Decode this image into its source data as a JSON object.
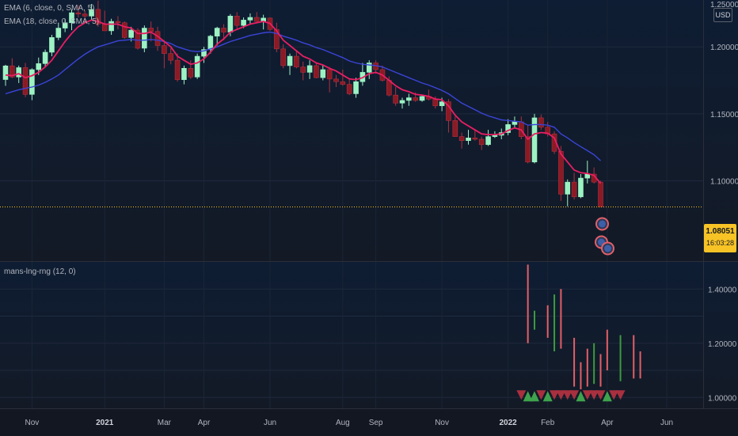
{
  "legend": {
    "ema_fast": "EMA (6, close, 0, SMA, 5)",
    "ema_slow": "EMA (18, close, 0, SMA, 5)",
    "indicator": "mans-lng-rng (12, 0)"
  },
  "axis": {
    "currency": "USD",
    "top_clipped_label": "1.25000",
    "current_price": "1.08051",
    "countdown": "16:03:28"
  },
  "colors": {
    "bull": "#9cf2c3",
    "bear": "#8b1a24",
    "ema_fast": "#e91e63",
    "ema_slow": "#3b44d8",
    "ind_bull": "#3d9a3d",
    "ind_bear": "#e35f68",
    "price_line": "#f7c325"
  },
  "chart_data": [
    {
      "type": "candlestick",
      "name": "main",
      "y_ticks": [
        "1.25000",
        "1.20000",
        "1.15000",
        "1.10000"
      ],
      "y_tick_values": [
        1.25,
        1.2,
        1.15,
        1.1
      ],
      "ylim": [
        1.04,
        1.235
      ],
      "x_ticks": [
        {
          "label": "Nov",
          "bold": false
        },
        {
          "label": "2021",
          "bold": true
        },
        {
          "label": "Mar",
          "bold": false
        },
        {
          "label": "Apr",
          "bold": false
        },
        {
          "label": "Jun",
          "bold": false
        },
        {
          "label": "Aug",
          "bold": false
        },
        {
          "label": "Sep",
          "bold": false
        },
        {
          "label": "Nov",
          "bold": false
        },
        {
          "label": "2022",
          "bold": true
        },
        {
          "label": "Feb",
          "bold": false
        },
        {
          "label": "Apr",
          "bold": false
        },
        {
          "label": "Jun",
          "bold": false
        }
      ],
      "x_tick_index": [
        4,
        15,
        24,
        30,
        40,
        51,
        56,
        66,
        76,
        82,
        91,
        100
      ],
      "candles": [
        [
          1.1756,
          1.1866,
          1.1709,
          1.1858
        ],
        [
          1.1858,
          1.1915,
          1.1766,
          1.1775
        ],
        [
          1.1775,
          1.186,
          1.173,
          1.1845
        ],
        [
          1.1845,
          1.188,
          1.1625,
          1.1645
        ],
        [
          1.1645,
          1.184,
          1.1602,
          1.183
        ],
        [
          1.183,
          1.192,
          1.179,
          1.1875
        ],
        [
          1.1875,
          1.198,
          1.185,
          1.196
        ],
        [
          1.196,
          1.209,
          1.193,
          1.207
        ],
        [
          1.207,
          1.218,
          1.205,
          1.214
        ],
        [
          1.214,
          1.221,
          1.211,
          1.218
        ],
        [
          1.218,
          1.228,
          1.2125,
          1.2255
        ],
        [
          1.2255,
          1.231,
          1.222,
          1.2245
        ],
        [
          1.2245,
          1.227,
          1.218,
          1.223
        ],
        [
          1.223,
          1.232,
          1.22,
          1.228
        ],
        [
          1.228,
          1.2345,
          1.215,
          1.217
        ],
        [
          1.217,
          1.227,
          1.212,
          1.212
        ],
        [
          1.212,
          1.221,
          1.209,
          1.219
        ],
        [
          1.219,
          1.223,
          1.213,
          1.218
        ],
        [
          1.218,
          1.219,
          1.206,
          1.207
        ],
        [
          1.207,
          1.215,
          1.204,
          1.2125
        ],
        [
          1.2125,
          1.214,
          1.198,
          1.199
        ],
        [
          1.199,
          1.216,
          1.196,
          1.214
        ],
        [
          1.214,
          1.219,
          1.204,
          1.2115
        ],
        [
          1.2115,
          1.215,
          1.197,
          1.201
        ],
        [
          1.201,
          1.205,
          1.184,
          1.195
        ],
        [
          1.195,
          1.199,
          1.187,
          1.19
        ],
        [
          1.19,
          1.195,
          1.174,
          1.1755
        ],
        [
          1.1755,
          1.186,
          1.172,
          1.184
        ],
        [
          1.184,
          1.19,
          1.176,
          1.1775
        ],
        [
          1.1775,
          1.195,
          1.176,
          1.193
        ],
        [
          1.193,
          1.2,
          1.188,
          1.198
        ],
        [
          1.198,
          1.209,
          1.195,
          1.208
        ],
        [
          1.208,
          1.215,
          1.201,
          1.214
        ],
        [
          1.214,
          1.217,
          1.205,
          1.211
        ],
        [
          1.211,
          1.2245,
          1.208,
          1.223
        ],
        [
          1.223,
          1.226,
          1.213,
          1.216
        ],
        [
          1.216,
          1.222,
          1.214,
          1.22
        ],
        [
          1.22,
          1.225,
          1.217,
          1.222
        ],
        [
          1.222,
          1.226,
          1.218,
          1.219
        ],
        [
          1.219,
          1.224,
          1.213,
          1.2215
        ],
        [
          1.2215,
          1.222,
          1.212,
          1.213
        ],
        [
          1.213,
          1.218,
          1.196,
          1.1985
        ],
        [
          1.1985,
          1.202,
          1.184,
          1.186
        ],
        [
          1.186,
          1.195,
          1.179,
          1.193
        ],
        [
          1.193,
          1.1975,
          1.184,
          1.185
        ],
        [
          1.185,
          1.189,
          1.175,
          1.181
        ],
        [
          1.181,
          1.19,
          1.176,
          1.186
        ],
        [
          1.186,
          1.188,
          1.1765,
          1.177
        ],
        [
          1.177,
          1.186,
          1.175,
          1.183
        ],
        [
          1.183,
          1.185,
          1.166,
          1.176
        ],
        [
          1.176,
          1.179,
          1.17,
          1.174
        ],
        [
          1.174,
          1.183,
          1.171,
          1.172
        ],
        [
          1.172,
          1.176,
          1.164,
          1.165
        ],
        [
          1.165,
          1.177,
          1.162,
          1.174
        ],
        [
          1.174,
          1.188,
          1.171,
          1.181
        ],
        [
          1.181,
          1.19,
          1.176,
          1.188
        ],
        [
          1.188,
          1.19,
          1.18,
          1.183
        ],
        [
          1.183,
          1.186,
          1.174,
          1.175
        ],
        [
          1.175,
          1.178,
          1.163,
          1.164
        ],
        [
          1.164,
          1.17,
          1.156,
          1.158
        ],
        [
          1.158,
          1.162,
          1.154,
          1.16
        ],
        [
          1.16,
          1.165,
          1.156,
          1.162
        ],
        [
          1.162,
          1.166,
          1.159,
          1.16
        ],
        [
          1.16,
          1.164,
          1.159,
          1.163
        ],
        [
          1.163,
          1.168,
          1.16,
          1.161
        ],
        [
          1.161,
          1.163,
          1.154,
          1.156
        ],
        [
          1.156,
          1.162,
          1.152,
          1.159
        ],
        [
          1.159,
          1.161,
          1.136,
          1.145
        ],
        [
          1.145,
          1.148,
          1.134,
          1.133
        ],
        [
          1.133,
          1.136,
          1.124,
          1.13
        ],
        [
          1.13,
          1.138,
          1.127,
          1.132
        ],
        [
          1.132,
          1.138,
          1.13,
          1.131
        ],
        [
          1.131,
          1.133,
          1.123,
          1.127
        ],
        [
          1.127,
          1.138,
          1.126,
          1.133
        ],
        [
          1.133,
          1.137,
          1.132,
          1.134
        ],
        [
          1.134,
          1.139,
          1.131,
          1.136
        ],
        [
          1.136,
          1.146,
          1.134,
          1.142
        ],
        [
          1.142,
          1.148,
          1.139,
          1.144
        ],
        [
          1.144,
          1.148,
          1.131,
          1.133
        ],
        [
          1.133,
          1.142,
          1.113,
          1.114
        ],
        [
          1.114,
          1.15,
          1.113,
          1.147
        ],
        [
          1.147,
          1.1495,
          1.138,
          1.14
        ],
        [
          1.14,
          1.144,
          1.133,
          1.135
        ],
        [
          1.135,
          1.137,
          1.12,
          1.122
        ],
        [
          1.122,
          1.126,
          1.085,
          1.09
        ],
        [
          1.09,
          1.101,
          1.081,
          1.099
        ],
        [
          1.099,
          1.106,
          1.086,
          1.088
        ],
        [
          1.088,
          1.105,
          1.087,
          1.102
        ],
        [
          1.102,
          1.115,
          1.098,
          1.105
        ],
        [
          1.105,
          1.11,
          1.098,
          1.099
        ],
        [
          1.099,
          1.1,
          1.081,
          1.0805
        ]
      ],
      "ema_fast": [
        1.179,
        1.1785,
        1.18,
        1.177,
        1.1785,
        1.181,
        1.185,
        1.19,
        1.197,
        1.204,
        1.21,
        1.215,
        1.218,
        1.22,
        1.219,
        1.217,
        1.217,
        1.217,
        1.215,
        1.214,
        1.21,
        1.21,
        1.211,
        1.208,
        1.204,
        1.2,
        1.193,
        1.19,
        1.187,
        1.188,
        1.191,
        1.196,
        1.202,
        1.206,
        1.211,
        1.213,
        1.215,
        1.217,
        1.218,
        1.219,
        1.2175,
        1.212,
        1.205,
        1.201,
        1.197,
        1.193,
        1.191,
        1.188,
        1.1865,
        1.184,
        1.182,
        1.179,
        1.176,
        1.1755,
        1.177,
        1.18,
        1.181,
        1.179,
        1.175,
        1.171,
        1.168,
        1.1665,
        1.1645,
        1.164,
        1.163,
        1.161,
        1.1605,
        1.156,
        1.149,
        1.144,
        1.141,
        1.138,
        1.135,
        1.1345,
        1.1345,
        1.135,
        1.1375,
        1.1395,
        1.138,
        1.131,
        1.135,
        1.136,
        1.1355,
        1.132,
        1.12,
        1.114,
        1.108,
        1.106,
        1.1055,
        1.104,
        1.098
      ],
      "ema_slow": [
        1.165,
        1.1665,
        1.168,
        1.169,
        1.17,
        1.1715,
        1.1735,
        1.176,
        1.179,
        1.183,
        1.187,
        1.191,
        1.1945,
        1.1975,
        1.2,
        1.2015,
        1.203,
        1.2045,
        1.205,
        1.2055,
        1.205,
        1.205,
        1.2055,
        1.205,
        1.204,
        1.2025,
        1.2,
        1.1985,
        1.197,
        1.1965,
        1.197,
        1.1985,
        1.2,
        1.202,
        1.204,
        1.2055,
        1.207,
        1.2085,
        1.2095,
        1.2105,
        1.211,
        1.21,
        1.208,
        1.2065,
        1.205,
        1.203,
        1.2015,
        1.1995,
        1.198,
        1.196,
        1.194,
        1.192,
        1.1895,
        1.188,
        1.187,
        1.1865,
        1.186,
        1.185,
        1.183,
        1.181,
        1.179,
        1.177,
        1.175,
        1.173,
        1.1715,
        1.1695,
        1.1675,
        1.165,
        1.1615,
        1.158,
        1.1555,
        1.153,
        1.1505,
        1.1485,
        1.147,
        1.1455,
        1.145,
        1.1445,
        1.144,
        1.1415,
        1.142,
        1.142,
        1.1415,
        1.14,
        1.135,
        1.132,
        1.1285,
        1.1255,
        1.1225,
        1.1195,
        1.115
      ]
    },
    {
      "type": "bar",
      "name": "mans-lng-rng",
      "y_ticks": [
        "1.40000",
        "1.20000",
        "1.00000"
      ],
      "y_tick_values": [
        1.4,
        1.2,
        1.0
      ],
      "ylim": [
        0.96,
        1.5
      ],
      "bars": [
        {
          "i": 79,
          "low": 1.2,
          "high": 1.49,
          "bull": false
        },
        {
          "i": 80,
          "low": 1.25,
          "high": 1.32,
          "bull": true
        },
        {
          "i": 82,
          "low": 1.22,
          "high": 1.34,
          "bull": false
        },
        {
          "i": 83,
          "low": 1.17,
          "high": 1.38,
          "bull": true
        },
        {
          "i": 84,
          "low": 1.18,
          "high": 1.4,
          "bull": false
        },
        {
          "i": 86,
          "low": 1.04,
          "high": 1.22,
          "bull": false
        },
        {
          "i": 87,
          "low": 1.03,
          "high": 1.13,
          "bull": false
        },
        {
          "i": 88,
          "low": 1.04,
          "high": 1.18,
          "bull": false
        },
        {
          "i": 89,
          "low": 1.05,
          "high": 1.2,
          "bull": true
        },
        {
          "i": 90,
          "low": 1.04,
          "high": 1.16,
          "bull": false
        },
        {
          "i": 91,
          "low": 1.1,
          "high": 1.25,
          "bull": false
        },
        {
          "i": 93,
          "low": 1.06,
          "high": 1.23,
          "bull": true
        },
        {
          "i": 95,
          "low": 1.07,
          "high": 1.23,
          "bull": false
        },
        {
          "i": 96,
          "low": 1.07,
          "high": 1.17,
          "bull": false
        }
      ],
      "markers": [
        {
          "i": 78,
          "dir": "down"
        },
        {
          "i": 79,
          "dir": "up"
        },
        {
          "i": 80,
          "dir": "up"
        },
        {
          "i": 81,
          "dir": "down"
        },
        {
          "i": 82,
          "dir": "up"
        },
        {
          "i": 83,
          "dir": "down"
        },
        {
          "i": 84,
          "dir": "down"
        },
        {
          "i": 85,
          "dir": "down"
        },
        {
          "i": 86,
          "dir": "down"
        },
        {
          "i": 87,
          "dir": "up"
        },
        {
          "i": 88,
          "dir": "down"
        },
        {
          "i": 89,
          "dir": "down"
        },
        {
          "i": 90,
          "dir": "down"
        },
        {
          "i": 91,
          "dir": "up"
        },
        {
          "i": 92,
          "dir": "down"
        },
        {
          "i": 93,
          "dir": "down"
        }
      ]
    }
  ]
}
